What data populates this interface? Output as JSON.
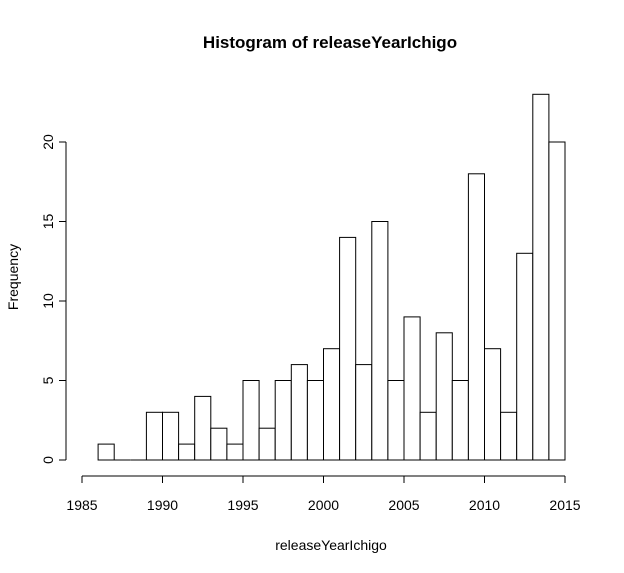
{
  "chart_data": {
    "type": "bar",
    "title": "Histogram of releaseYearIchigo",
    "xlabel": "releaseYearIchigo",
    "ylabel": "Frequency",
    "xlim": [
      1985,
      2015
    ],
    "ylim": [
      0,
      23
    ],
    "bin_width": 1,
    "x_ticks": [
      "1985",
      "1990",
      "1995",
      "2000",
      "2005",
      "2010",
      "2015"
    ],
    "y_ticks": [
      "0",
      "5",
      "10",
      "15",
      "20"
    ],
    "bins": [
      {
        "start": 1986,
        "end": 1987,
        "value": 1
      },
      {
        "start": 1987,
        "end": 1988,
        "value": 0
      },
      {
        "start": 1988,
        "end": 1989,
        "value": 0
      },
      {
        "start": 1989,
        "end": 1990,
        "value": 3
      },
      {
        "start": 1990,
        "end": 1991,
        "value": 3
      },
      {
        "start": 1991,
        "end": 1992,
        "value": 1
      },
      {
        "start": 1992,
        "end": 1993,
        "value": 4
      },
      {
        "start": 1993,
        "end": 1994,
        "value": 2
      },
      {
        "start": 1994,
        "end": 1995,
        "value": 1
      },
      {
        "start": 1995,
        "end": 1996,
        "value": 5
      },
      {
        "start": 1996,
        "end": 1997,
        "value": 2
      },
      {
        "start": 1997,
        "end": 1998,
        "value": 5
      },
      {
        "start": 1998,
        "end": 1999,
        "value": 6
      },
      {
        "start": 1999,
        "end": 2000,
        "value": 5
      },
      {
        "start": 2000,
        "end": 2001,
        "value": 7
      },
      {
        "start": 2001,
        "end": 2002,
        "value": 14
      },
      {
        "start": 2002,
        "end": 2003,
        "value": 6
      },
      {
        "start": 2003,
        "end": 2004,
        "value": 15
      },
      {
        "start": 2004,
        "end": 2005,
        "value": 5
      },
      {
        "start": 2005,
        "end": 2006,
        "value": 9
      },
      {
        "start": 2006,
        "end": 2007,
        "value": 3
      },
      {
        "start": 2007,
        "end": 2008,
        "value": 8
      },
      {
        "start": 2008,
        "end": 2009,
        "value": 5
      },
      {
        "start": 2009,
        "end": 2010,
        "value": 18
      },
      {
        "start": 2010,
        "end": 2011,
        "value": 7
      },
      {
        "start": 2011,
        "end": 2012,
        "value": 3
      },
      {
        "start": 2012,
        "end": 2013,
        "value": 13
      },
      {
        "start": 2013,
        "end": 2014,
        "value": 23
      },
      {
        "start": 2014,
        "end": 2015,
        "value": 20
      }
    ],
    "grid": false,
    "legend": "none"
  }
}
